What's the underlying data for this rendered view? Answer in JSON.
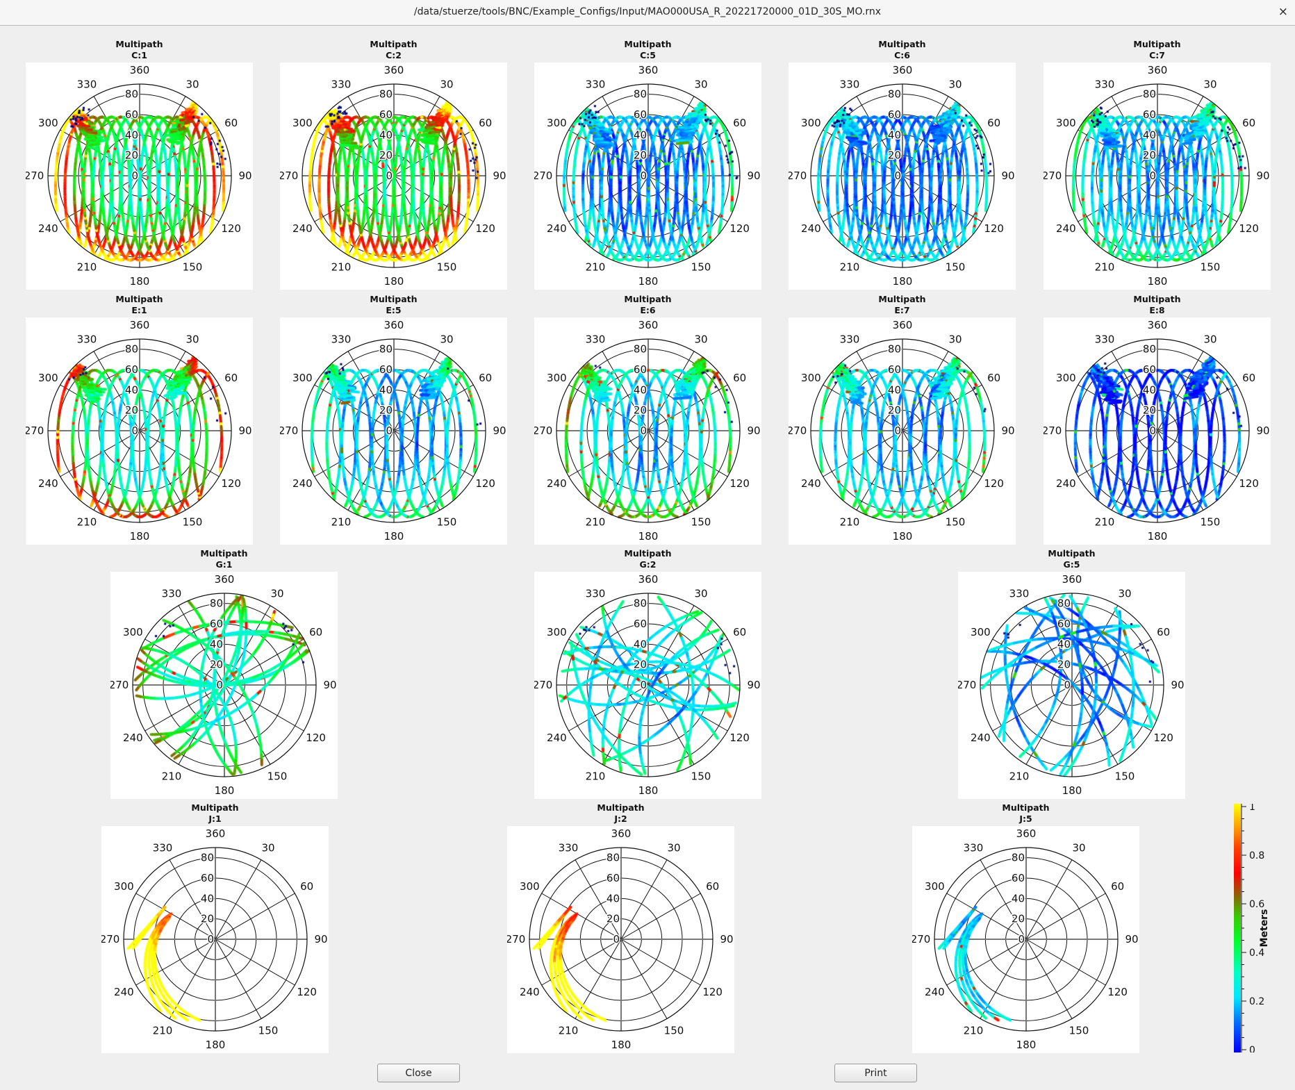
{
  "window": {
    "title": "/data/stuerze/tools/BNC/Example_Configs/Input/MAO000USA_R_20221720000_01D_30S_MO.rnx",
    "close_glyph": "×"
  },
  "buttons": {
    "close": "Close",
    "print": "Print"
  },
  "colorbar": {
    "label": "Meters",
    "range": [
      0,
      1
    ],
    "ticks": [
      "0",
      "0.2",
      "0.4",
      "0.6",
      "0.8",
      "1"
    ],
    "colormap": "jet-like (blue→cyan→green→red→yellow)"
  },
  "chart_data": {
    "type": "scatter",
    "projection": "polar skyplot",
    "angular_ticks": [
      "360",
      "30",
      "60",
      "90",
      "120",
      "150",
      "180",
      "210",
      "240",
      "270",
      "300",
      "330"
    ],
    "radial_ticks": [
      "0",
      "20",
      "40",
      "60",
      "80"
    ],
    "radial_range": [
      0,
      90
    ],
    "plots": [
      {
        "title": "Multipath",
        "subtitle": "C:1",
        "coverage": "full",
        "typical_multipath_m": 0.35
      },
      {
        "title": "Multipath",
        "subtitle": "C:2",
        "coverage": "full",
        "typical_multipath_m": 0.4
      },
      {
        "title": "Multipath",
        "subtitle": "C:5",
        "coverage": "full",
        "typical_multipath_m": 0.12
      },
      {
        "title": "Multipath",
        "subtitle": "C:6",
        "coverage": "full",
        "typical_multipath_m": 0.1
      },
      {
        "title": "Multipath",
        "subtitle": "C:7",
        "coverage": "full",
        "typical_multipath_m": 0.14
      },
      {
        "title": "Multipath",
        "subtitle": "E:1",
        "coverage": "full",
        "typical_multipath_m": 0.28
      },
      {
        "title": "Multipath",
        "subtitle": "E:5",
        "coverage": "full",
        "typical_multipath_m": 0.15
      },
      {
        "title": "Multipath",
        "subtitle": "E:6",
        "coverage": "full",
        "typical_multipath_m": 0.2
      },
      {
        "title": "Multipath",
        "subtitle": "E:7",
        "coverage": "full",
        "typical_multipath_m": 0.15
      },
      {
        "title": "Multipath",
        "subtitle": "E:8",
        "coverage": "full",
        "typical_multipath_m": 0.04
      },
      {
        "title": "Multipath",
        "subtitle": "G:1",
        "coverage": "sparse",
        "typical_multipath_m": 0.3
      },
      {
        "title": "Multipath",
        "subtitle": "G:2",
        "coverage": "sparse",
        "typical_multipath_m": 0.2
      },
      {
        "title": "Multipath",
        "subtitle": "G:5",
        "coverage": "sparse",
        "typical_multipath_m": 0.12
      },
      {
        "title": "Multipath",
        "subtitle": "J:1",
        "coverage": "west only",
        "typical_multipath_m": 0.75
      },
      {
        "title": "Multipath",
        "subtitle": "J:2",
        "coverage": "west only",
        "typical_multipath_m": 0.7
      },
      {
        "title": "Multipath",
        "subtitle": "J:5",
        "coverage": "west only",
        "typical_multipath_m": 0.15
      }
    ]
  }
}
